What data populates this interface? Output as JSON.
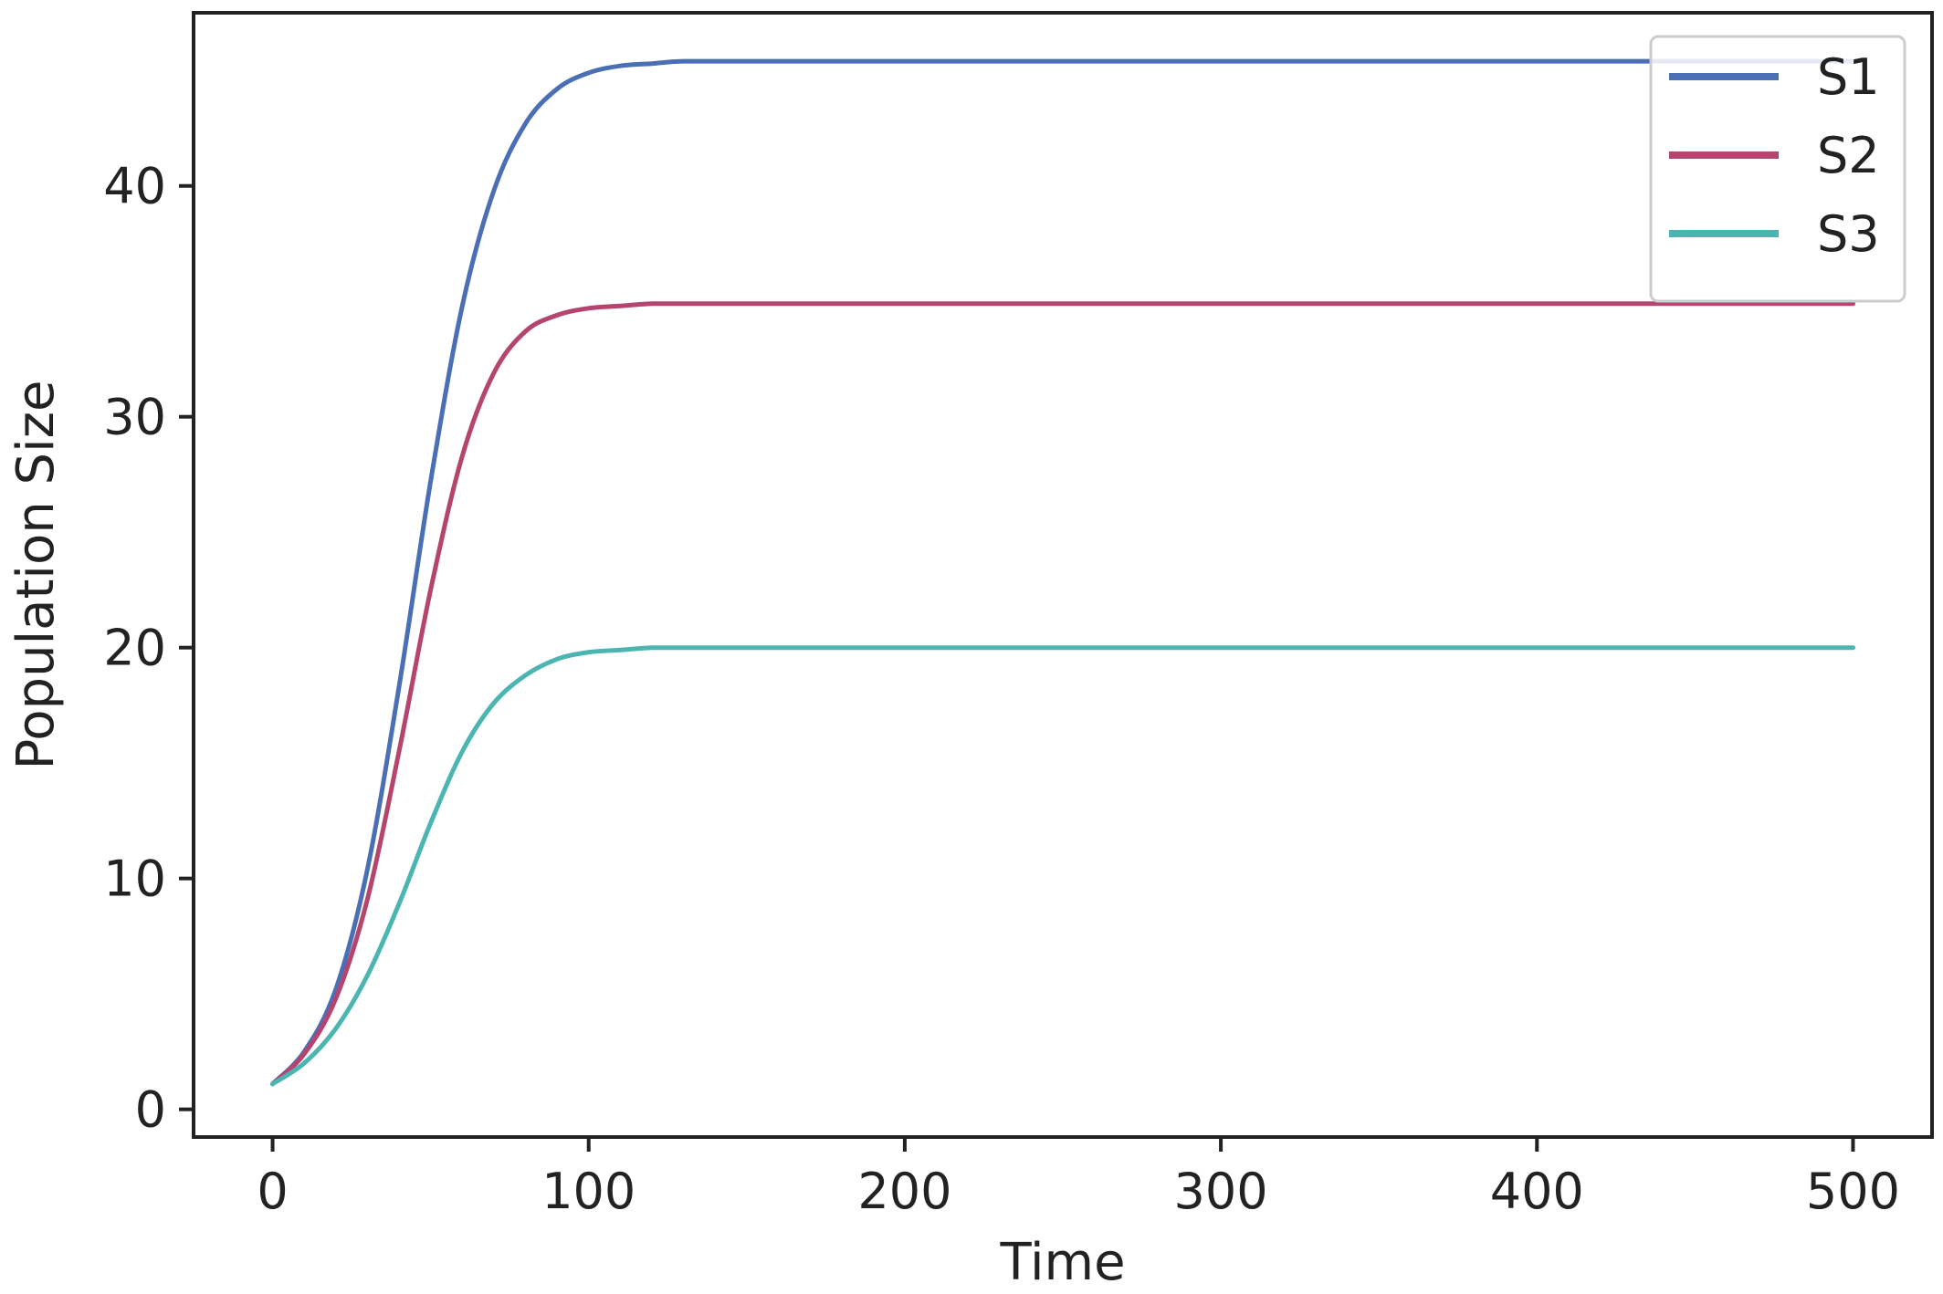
{
  "chart_data": {
    "type": "line",
    "title": "",
    "xlabel": "Time",
    "ylabel": "Population Size",
    "xlim": [
      -25,
      525
    ],
    "ylim": [
      -1.2,
      47.5
    ],
    "xticks": [
      0,
      100,
      200,
      300,
      400,
      500
    ],
    "yticks": [
      0,
      10,
      20,
      30,
      40
    ],
    "grid": false,
    "legend_position": "top-right",
    "x": [
      0,
      10,
      20,
      30,
      40,
      50,
      60,
      70,
      80,
      90,
      100,
      110,
      120,
      130,
      150,
      200,
      300,
      400,
      500
    ],
    "series": [
      {
        "name": "S1",
        "color": "#4a6fb5",
        "values": [
          1.1,
          2.5,
          5.2,
          10.4,
          18.3,
          27.2,
          34.8,
          39.8,
          42.7,
          44.2,
          44.9,
          45.2,
          45.3,
          45.4,
          45.4,
          45.4,
          45.4,
          45.4,
          45.4
        ]
      },
      {
        "name": "S2",
        "color": "#b5446e",
        "values": [
          1.1,
          2.4,
          4.8,
          9.1,
          15.5,
          22.5,
          28.3,
          31.9,
          33.7,
          34.4,
          34.7,
          34.8,
          34.9,
          34.9,
          34.9,
          34.9,
          34.9,
          34.9,
          34.9
        ]
      },
      {
        "name": "S3",
        "color": "#4bb5b2",
        "values": [
          1.1,
          2.0,
          3.5,
          5.8,
          8.9,
          12.4,
          15.5,
          17.6,
          18.8,
          19.5,
          19.8,
          19.9,
          20.0,
          20.0,
          20.0,
          20.0,
          20.0,
          20.0,
          20.0
        ]
      }
    ]
  }
}
